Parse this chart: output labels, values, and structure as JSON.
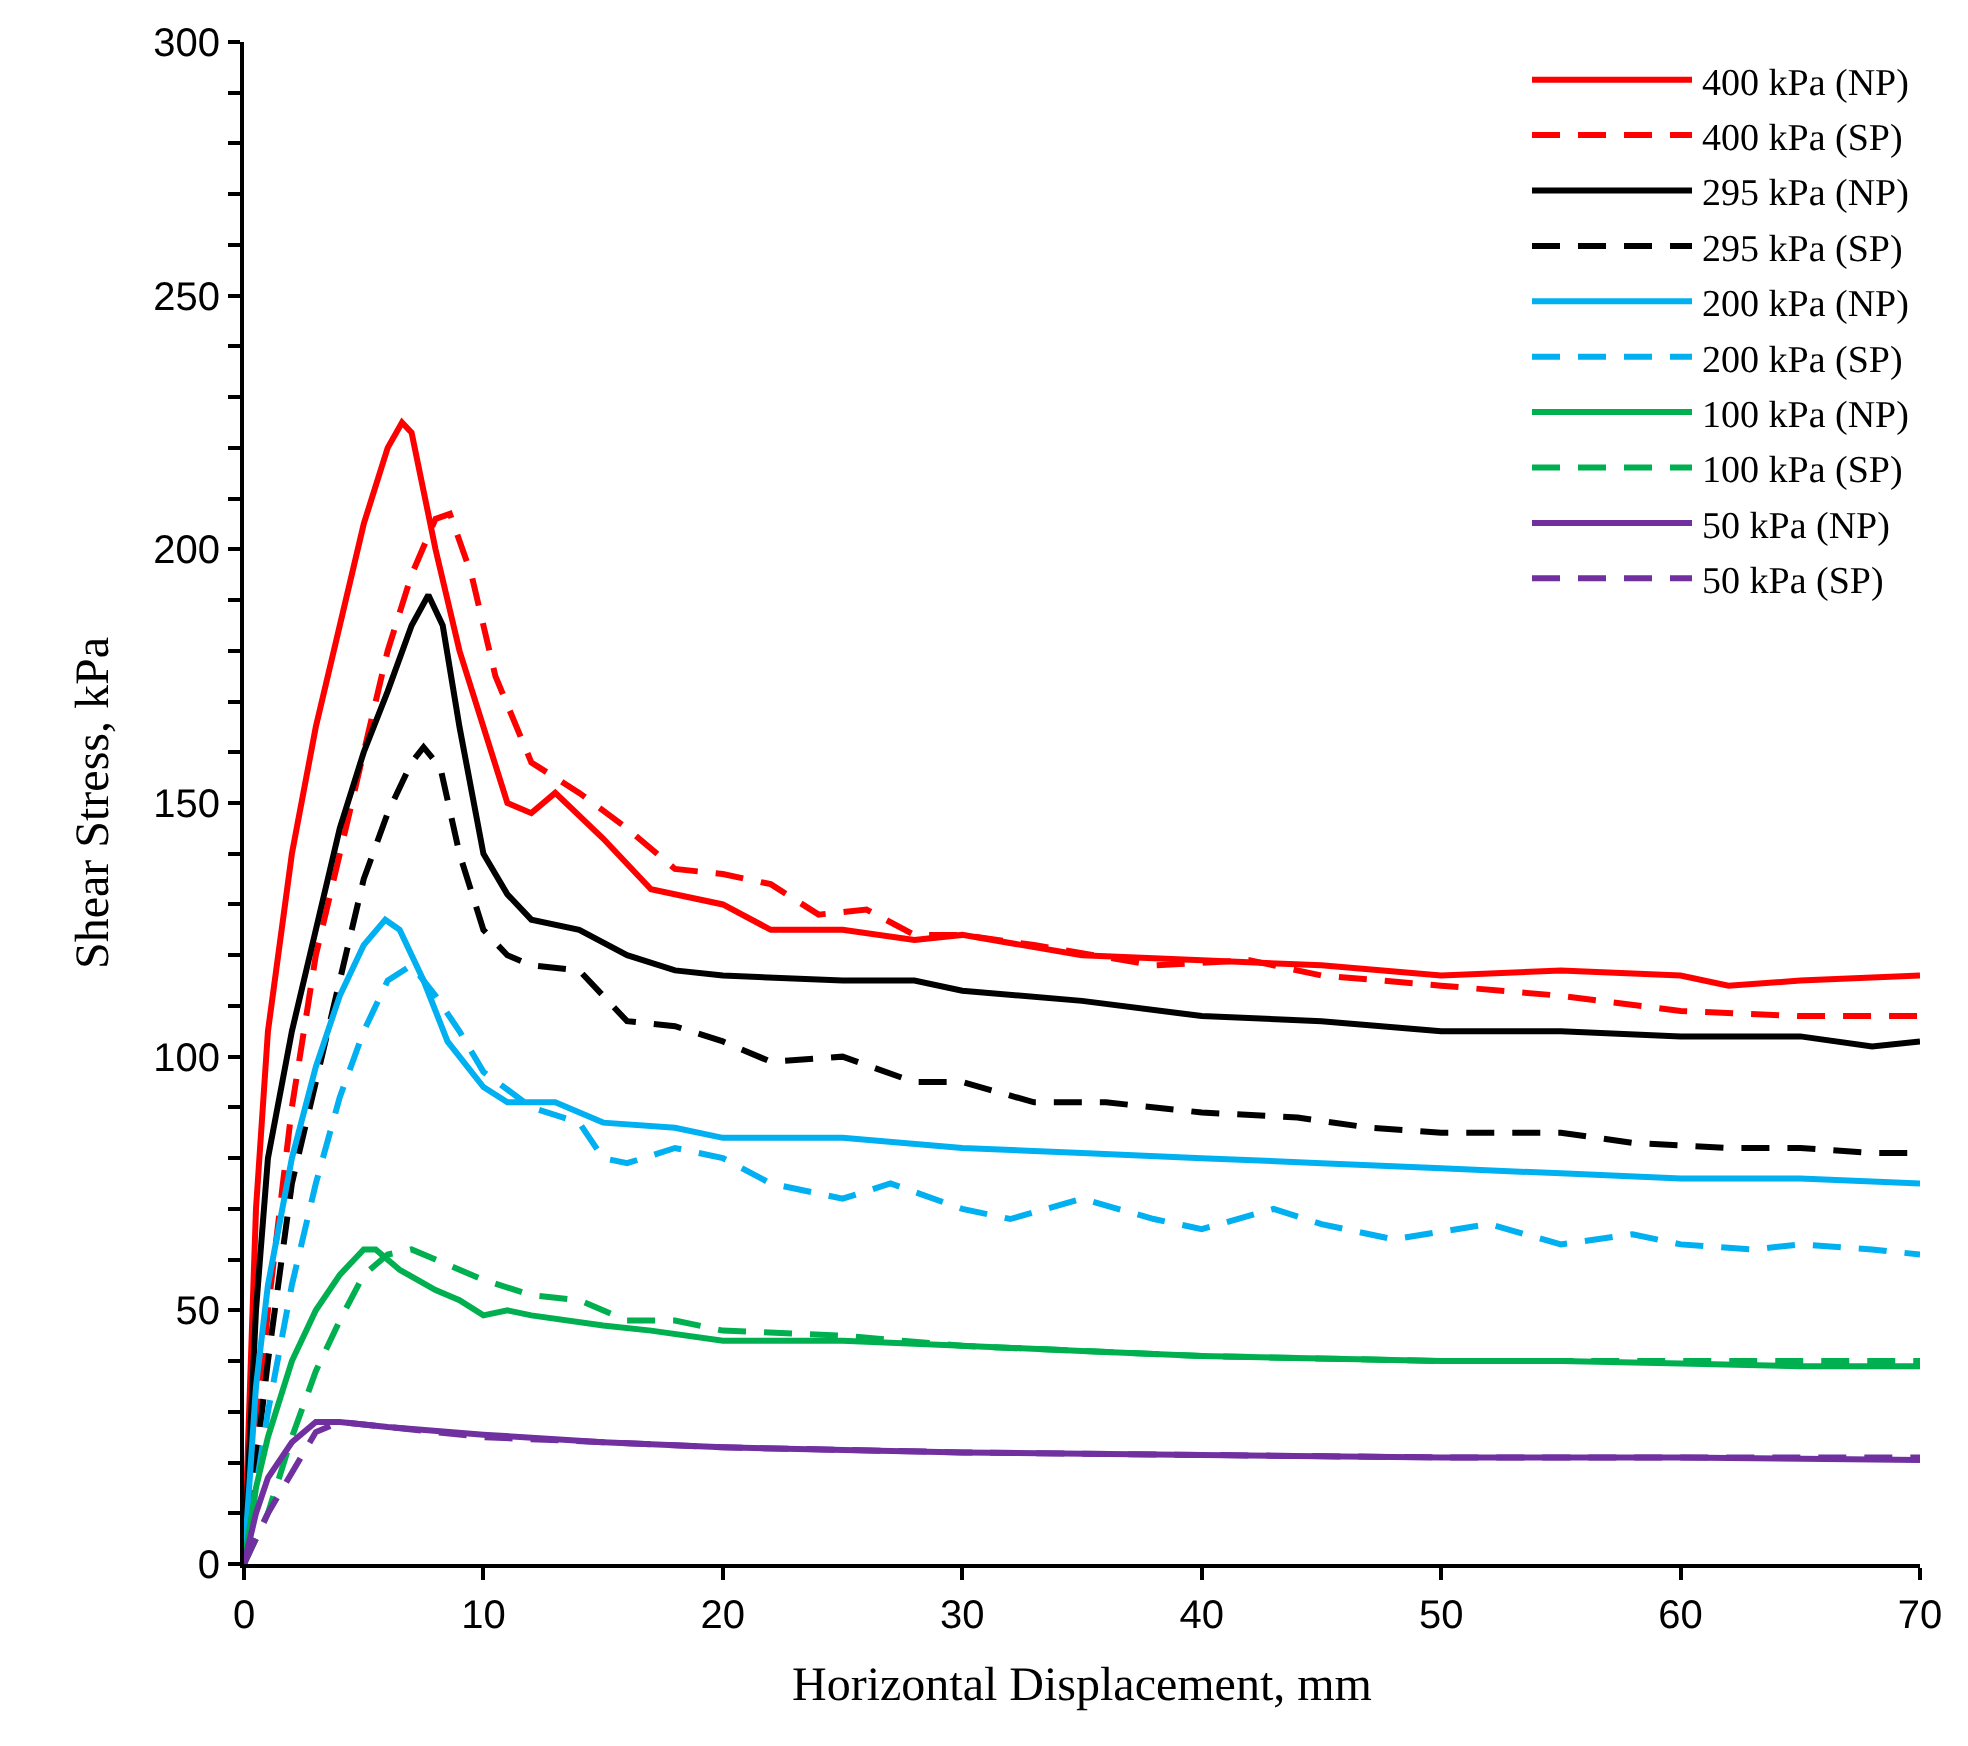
{
  "chart_data": {
    "type": "line",
    "xlabel": "Horizontal Displacement, mm",
    "ylabel": "Shear Stress, kPa",
    "xlim": [
      0,
      70
    ],
    "xticks": [
      0,
      10,
      20,
      30,
      40,
      50,
      60,
      70
    ],
    "ylim": [
      0,
      300
    ],
    "yticks": [
      0,
      {
        "value": 10,
        "label": null
      },
      {
        "value": 20,
        "label": null
      },
      {
        "value": 30,
        "label": null
      },
      {
        "value": 40,
        "label": null
      },
      50,
      {
        "value": 60,
        "label": null
      },
      {
        "value": 70,
        "label": null
      },
      {
        "value": 80,
        "label": null
      },
      {
        "value": 90,
        "label": null
      },
      100,
      {
        "value": 110,
        "label": null
      },
      {
        "value": 120,
        "label": null
      },
      {
        "value": 130,
        "label": null
      },
      {
        "value": 140,
        "label": null
      },
      150,
      {
        "value": 160,
        "label": null
      },
      {
        "value": 170,
        "label": null
      },
      {
        "value": 180,
        "label": null
      },
      {
        "value": 190,
        "label": null
      },
      200,
      {
        "value": 210,
        "label": null
      },
      {
        "value": 220,
        "label": null
      },
      {
        "value": 230,
        "label": null
      },
      {
        "value": 240,
        "label": null
      },
      250,
      {
        "value": 260,
        "label": null
      },
      {
        "value": 270,
        "label": null
      },
      {
        "value": 280,
        "label": null
      },
      {
        "value": 290,
        "label": null
      },
      300
    ],
    "legend": "top right",
    "marker": "none",
    "series": [
      {
        "name": "400 kPa (NP)",
        "color": "#ff0000",
        "line_style": "solid",
        "x": [
          0,
          0.5,
          1,
          2,
          3,
          4,
          5,
          6,
          6.6,
          7,
          8,
          9,
          10,
          11,
          12,
          13,
          15,
          17,
          20,
          22,
          25,
          28,
          30,
          35,
          40,
          45,
          50,
          55,
          60,
          62,
          65,
          70
        ],
        "values": [
          0,
          70,
          105,
          140,
          165,
          185,
          205,
          220,
          225,
          223,
          200,
          180,
          165,
          150,
          148,
          152,
          143,
          133,
          130,
          125,
          125,
          123,
          124,
          120,
          119,
          118,
          116,
          117,
          116,
          114,
          115,
          116
        ]
      },
      {
        "name": "400 kPa (SP)",
        "color": "#ff0000",
        "line_style": "dashed",
        "x": [
          0,
          1,
          2,
          3,
          4,
          5,
          6,
          7,
          8,
          8.6,
          9.5,
          10.5,
          12,
          14,
          16,
          18,
          20,
          22,
          24,
          26,
          28,
          30,
          33,
          38,
          42,
          45,
          50,
          55,
          60,
          65,
          70
        ],
        "values": [
          0,
          50,
          90,
          120,
          140,
          160,
          180,
          195,
          206,
          207,
          195,
          175,
          158,
          152,
          145,
          137,
          136,
          134,
          128,
          129,
          124,
          124,
          122,
          118,
          119,
          116,
          114,
          112,
          109,
          108,
          108
        ]
      },
      {
        "name": "295 kPa (NP)",
        "color": "#000000",
        "line_style": "solid",
        "x": [
          0,
          0.5,
          1,
          2,
          3,
          4,
          5,
          6,
          7,
          7.7,
          8.3,
          9,
          10,
          11,
          12,
          14,
          16,
          18,
          20,
          25,
          28,
          30,
          35,
          40,
          45,
          50,
          55,
          60,
          65,
          68,
          70
        ],
        "values": [
          0,
          50,
          80,
          105,
          125,
          145,
          160,
          172,
          185,
          191,
          185,
          165,
          140,
          132,
          127,
          125,
          120,
          117,
          116,
          115,
          115,
          113,
          111,
          108,
          107,
          105,
          105,
          104,
          104,
          102,
          103
        ]
      },
      {
        "name": "295 kPa (SP)",
        "color": "#000000",
        "line_style": "dashed",
        "x": [
          0,
          1,
          2,
          3,
          4,
          5,
          6,
          7,
          7.5,
          8.2,
          9,
          10,
          11,
          12,
          14,
          16,
          18,
          20,
          22,
          25,
          28,
          30,
          33,
          36,
          40,
          44,
          47,
          50,
          55,
          58,
          62,
          65,
          68,
          70
        ],
        "values": [
          0,
          40,
          75,
          95,
          115,
          135,
          148,
          158,
          161,
          157,
          140,
          125,
          120,
          118,
          117,
          107,
          106,
          103,
          99,
          100,
          95,
          95,
          91,
          91,
          89,
          88,
          86,
          85,
          85,
          83,
          82,
          82,
          81,
          81
        ]
      },
      {
        "name": "200 kPa (NP)",
        "color": "#00b0f0",
        "line_style": "solid",
        "x": [
          0,
          0.5,
          1,
          2,
          3,
          4,
          5,
          5.9,
          6.5,
          7.5,
          8.5,
          10,
          11,
          13,
          15,
          18,
          20,
          25,
          30,
          35,
          40,
          45,
          50,
          55,
          60,
          65,
          70
        ],
        "values": [
          0,
          35,
          55,
          80,
          98,
          112,
          122,
          127,
          125,
          115,
          103,
          94,
          91,
          91,
          87,
          86,
          84,
          84,
          82,
          81,
          80,
          79,
          78,
          77,
          76,
          76,
          75
        ]
      },
      {
        "name": "200 kPa (SP)",
        "color": "#00b0f0",
        "line_style": "dashed",
        "x": [
          0,
          1,
          2,
          3,
          4,
          5,
          6,
          7,
          8,
          9,
          10,
          12,
          14,
          15,
          16,
          18,
          20,
          22,
          25,
          27,
          30,
          32,
          35,
          38,
          40,
          43,
          45,
          48,
          52,
          55,
          58,
          60,
          63,
          65,
          68,
          70
        ],
        "values": [
          0,
          30,
          55,
          75,
          92,
          105,
          115,
          118,
          112,
          105,
          97,
          90,
          87,
          80,
          79,
          82,
          80,
          75,
          72,
          75,
          70,
          68,
          72,
          68,
          66,
          70,
          67,
          64,
          67,
          63,
          65,
          63,
          62,
          63,
          62,
          61
        ]
      },
      {
        "name": "100 kPa (NP)",
        "color": "#00b050",
        "line_style": "solid",
        "x": [
          0,
          0.5,
          1,
          2,
          3,
          4,
          5,
          5.5,
          6.5,
          8,
          9,
          10,
          11,
          12,
          15,
          17,
          20,
          25,
          30,
          35,
          40,
          45,
          50,
          55,
          60,
          65,
          70
        ],
        "values": [
          0,
          15,
          25,
          40,
          50,
          57,
          62,
          62,
          58,
          54,
          52,
          49,
          50,
          49,
          47,
          46,
          44,
          44,
          43,
          42,
          41,
          40.5,
          40,
          40,
          39.5,
          39,
          39
        ]
      },
      {
        "name": "100 kPa (SP)",
        "color": "#00b050",
        "line_style": "dashed",
        "x": [
          0,
          1,
          2,
          3,
          4,
          5,
          6,
          7,
          8,
          10,
          12,
          14,
          16,
          18,
          20,
          25,
          30,
          35,
          40,
          50,
          60,
          70
        ],
        "values": [
          0,
          10,
          25,
          38,
          48,
          57,
          61,
          62,
          60,
          56,
          53,
          52,
          48,
          48,
          46,
          45,
          43,
          42,
          41,
          40,
          40,
          40
        ]
      },
      {
        "name": "50 kPa (NP)",
        "color": "#7030a0",
        "line_style": "solid",
        "x": [
          0,
          0.5,
          1,
          2,
          3,
          4,
          6,
          10,
          15,
          20,
          30,
          40,
          50,
          60,
          70
        ],
        "values": [
          0,
          10,
          17,
          24,
          28,
          28,
          27,
          25.5,
          24,
          23,
          22,
          21.5,
          21,
          21,
          20.5
        ]
      },
      {
        "name": "50 kPa (SP)",
        "color": "#7030a0",
        "line_style": "dashed",
        "x": [
          0,
          0.5,
          1,
          2,
          3,
          4,
          6,
          10,
          15,
          20,
          30,
          40,
          50,
          60,
          70
        ],
        "values": [
          0,
          5,
          10,
          18,
          26,
          28,
          27,
          25,
          24,
          23,
          22,
          21.5,
          21,
          21,
          21
        ]
      }
    ]
  }
}
